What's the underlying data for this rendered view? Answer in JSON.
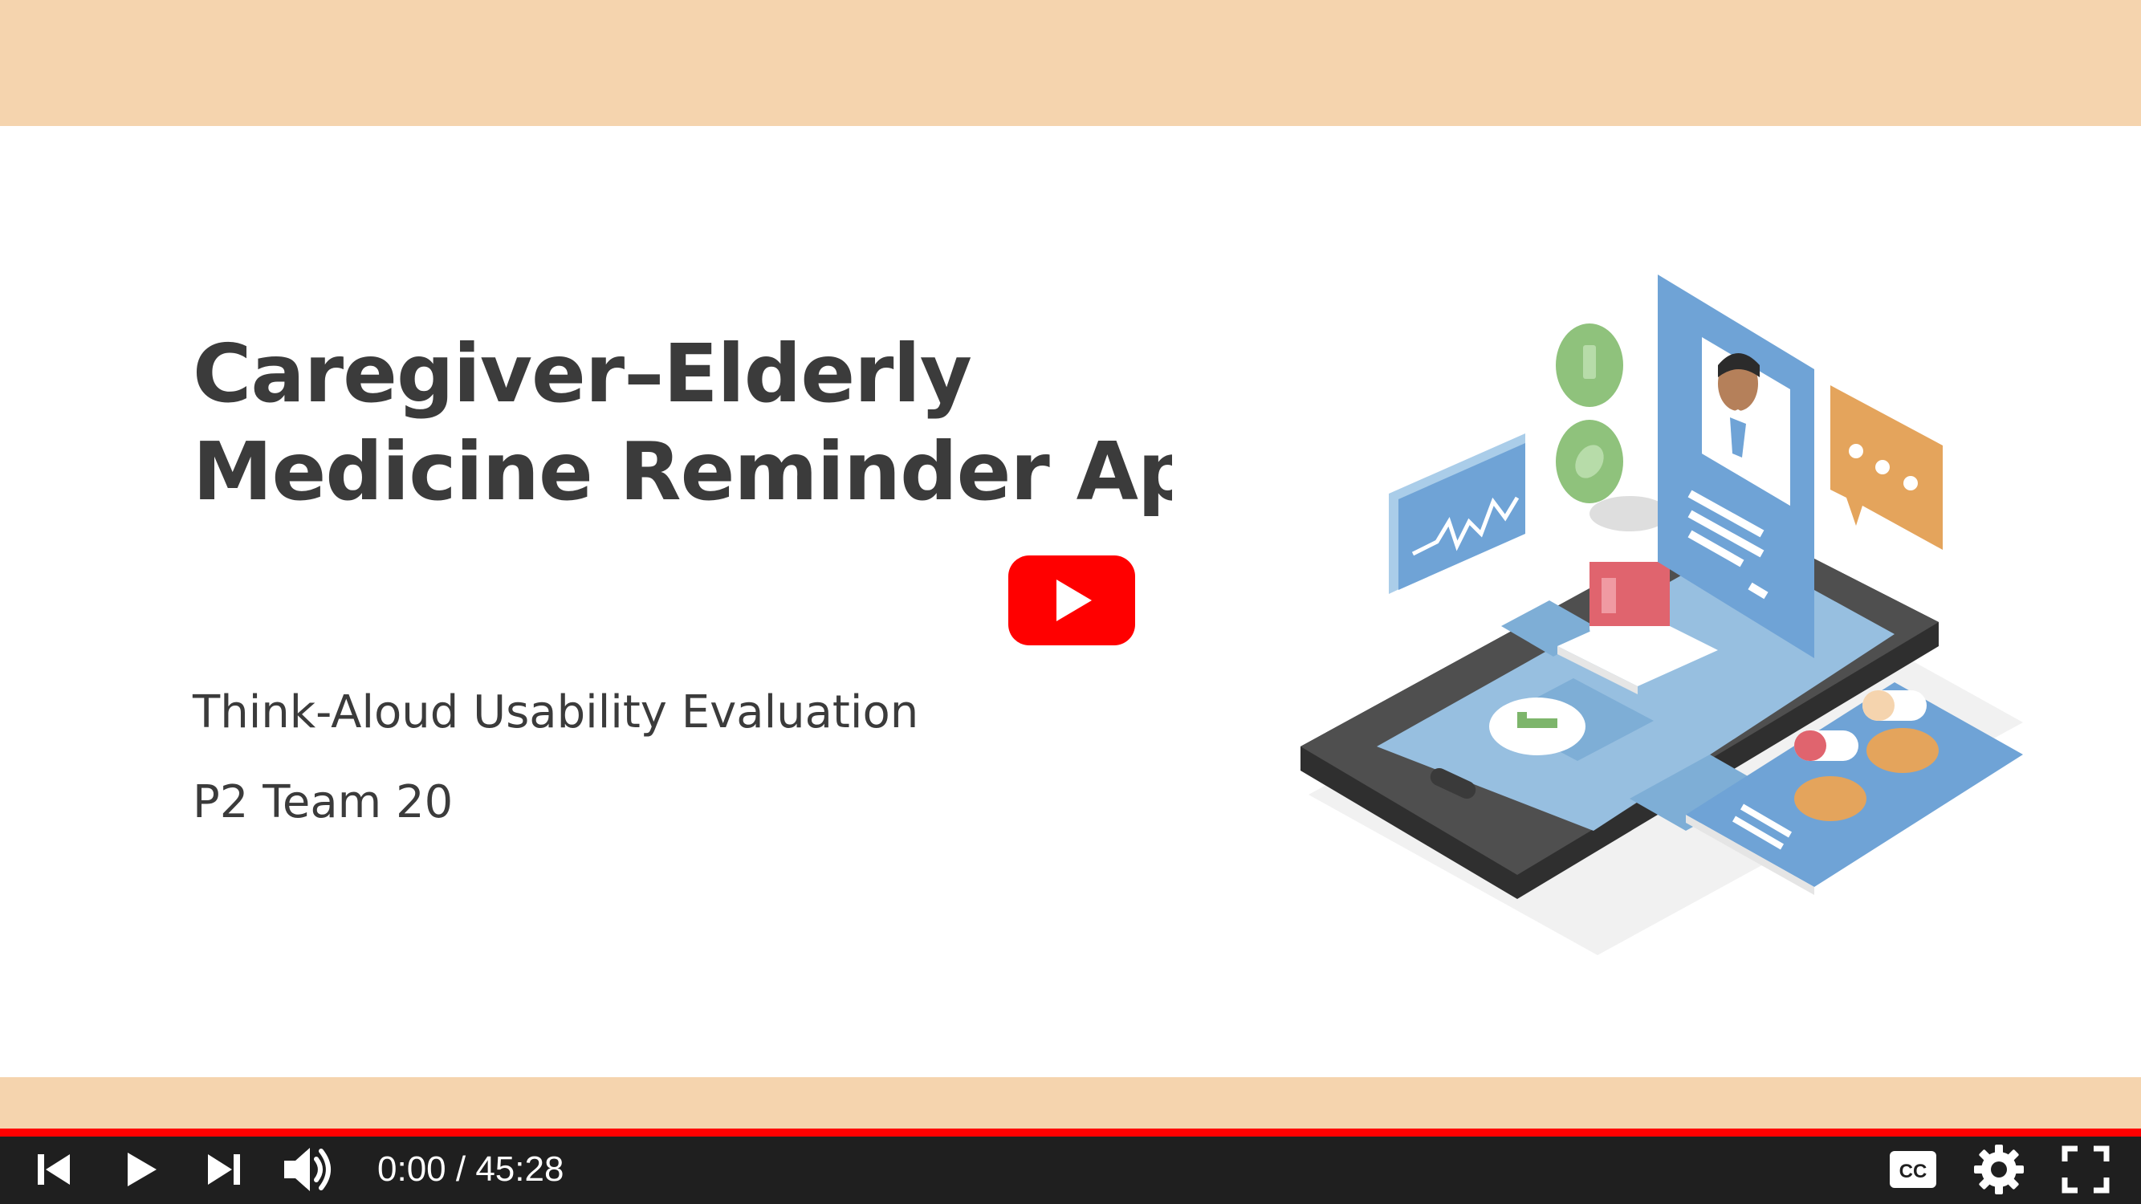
{
  "slide": {
    "title_line1": "Caregiver–Elderly",
    "title_line2": "Medicine Reminder App",
    "subtitle": "Think-Aloud Usability Evaluation",
    "team": "P2 Team 20"
  },
  "player": {
    "current_time": "0:00",
    "separator": " / ",
    "duration": "45:28",
    "progress": 0.0,
    "accent_color": "#ff0000",
    "controls": [
      "previous-icon",
      "play-icon",
      "next-icon",
      "volume-icon",
      "captions-icon",
      "settings-icon",
      "fullscreen-icon"
    ]
  },
  "colors": {
    "band": "#f5d4ae",
    "title_text": "#3b3b3b",
    "youtube_red": "#ff0000"
  }
}
